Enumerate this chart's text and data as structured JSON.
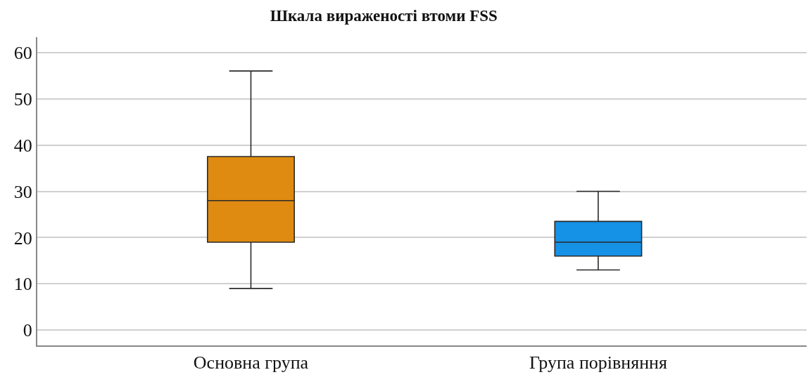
{
  "chart_data": {
    "type": "box",
    "title": "Шкала вираженості втоми FSS",
    "categories": [
      "Основна група",
      "Група порівняння"
    ],
    "boxes": [
      {
        "low": 9,
        "q1": 19,
        "median": 28,
        "q3": 37.5,
        "high": 56
      },
      {
        "low": 13,
        "q1": 16,
        "median": 19,
        "q3": 23.5,
        "high": 30
      }
    ],
    "colors": [
      "#df8a10",
      "#1591e6"
    ],
    "ylim": [
      -3.3,
      63.3
    ],
    "yticks": [
      0,
      10,
      20,
      30,
      40,
      50,
      60
    ],
    "grid": "y"
  }
}
